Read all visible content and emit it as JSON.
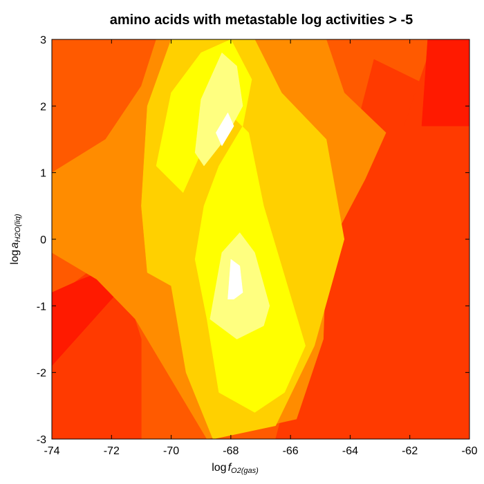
{
  "chart_data": {
    "type": "heatmap",
    "title": "amino acids with metastable log activities > -5",
    "xlabel": {
      "prefix": "log",
      "var": "f",
      "sub": "O2(gas)"
    },
    "ylabel": {
      "prefix": "log",
      "var": "a",
      "sub": "H2O(liq)"
    },
    "xlim": [
      -74,
      -60
    ],
    "ylim": [
      -3,
      3
    ],
    "x_ticks": [
      "-74",
      "-72",
      "-70",
      "-68",
      "-66",
      "-64",
      "-62",
      "-60"
    ],
    "x_tick_values": [
      -74,
      -72,
      -70,
      -68,
      -66,
      -64,
      -62,
      -60
    ],
    "y_ticks": [
      "-3",
      "-2",
      "-1",
      "0",
      "1",
      "2",
      "3"
    ],
    "y_tick_values": [
      -3,
      -2,
      -1,
      0,
      1,
      2,
      3
    ],
    "color_scale": [
      "#ff1a00",
      "#ff3a00",
      "#ff5a00",
      "#ff8c00",
      "#ffd000",
      "#ffff00",
      "#ffff80",
      "#ffffff"
    ],
    "count_levels": [
      1,
      2,
      3,
      4,
      5,
      6,
      7,
      8
    ],
    "regions": [
      {
        "level": 3,
        "points": [
          [
            -74,
            3
          ],
          [
            -60,
            3
          ],
          [
            -60,
            -3
          ],
          [
            -74,
            -3
          ]
        ]
      },
      {
        "level": 2,
        "points": [
          [
            -74,
            -0.9
          ],
          [
            -72.5,
            -0.4
          ],
          [
            -71.5,
            -0.8
          ],
          [
            -71,
            -1.5
          ],
          [
            -71,
            -3
          ],
          [
            -74,
            -3
          ]
        ]
      },
      {
        "level": 2,
        "points": [
          [
            -66.5,
            -3
          ],
          [
            -63.2,
            2.7
          ],
          [
            -60,
            2.0
          ],
          [
            -60,
            -3
          ]
        ]
      },
      {
        "level": 2,
        "points": [
          [
            -61.2,
            3
          ],
          [
            -60,
            3
          ],
          [
            -60,
            1.7
          ],
          [
            -62.2,
            1.7
          ]
        ]
      },
      {
        "level": 1,
        "points": [
          [
            -61.4,
            3
          ],
          [
            -60,
            3
          ],
          [
            -60,
            1.7
          ],
          [
            -61.6,
            1.7
          ]
        ]
      },
      {
        "level": 1,
        "points": [
          [
            -74,
            -1.9
          ],
          [
            -72.8,
            -1.3
          ],
          [
            -71.6,
            -0.7
          ],
          [
            -71.8,
            -0.4
          ],
          [
            -73,
            -0.6
          ],
          [
            -74,
            -0.8
          ]
        ]
      },
      {
        "level": 4,
        "points": [
          [
            -74,
            1.0
          ],
          [
            -72.2,
            1.5
          ],
          [
            -71,
            2.3
          ],
          [
            -70.5,
            3
          ],
          [
            -64.8,
            3
          ],
          [
            -64.2,
            2.2
          ],
          [
            -62.8,
            1.6
          ],
          [
            -63.5,
            0.9
          ],
          [
            -64.8,
            -0.2
          ],
          [
            -64.9,
            -1.5
          ],
          [
            -65.8,
            -2.7
          ],
          [
            -68.8,
            -3
          ],
          [
            -71.2,
            -1.2
          ],
          [
            -72.5,
            -0.6
          ],
          [
            -74,
            -0.2
          ]
        ]
      },
      {
        "level": 5,
        "points": [
          [
            -71,
            0.5
          ],
          [
            -70.8,
            2.0
          ],
          [
            -70,
            3
          ],
          [
            -67.2,
            3
          ],
          [
            -66.3,
            2.2
          ],
          [
            -64.8,
            1.5
          ],
          [
            -64.2,
            0
          ],
          [
            -65.2,
            -1.6
          ],
          [
            -66.5,
            -2.8
          ],
          [
            -68.6,
            -3
          ],
          [
            -69.5,
            -2.0
          ],
          [
            -70,
            -0.7
          ],
          [
            -70.8,
            -0.5
          ]
        ]
      },
      {
        "level": 6,
        "points": [
          [
            -70.5,
            1.1
          ],
          [
            -70,
            2.2
          ],
          [
            -69,
            2.8
          ],
          [
            -68,
            3
          ],
          [
            -67.3,
            2.4
          ],
          [
            -67.6,
            1.7
          ],
          [
            -68.4,
            1.1
          ],
          [
            -68.9,
            0.5
          ],
          [
            -69.2,
            -0.3
          ],
          [
            -68.8,
            -1.2
          ],
          [
            -68.4,
            -2.3
          ],
          [
            -67.2,
            -2.6
          ],
          [
            -66.2,
            -2.3
          ],
          [
            -65.5,
            -1.6
          ],
          [
            -66.3,
            -0.4
          ],
          [
            -66.9,
            0.5
          ],
          [
            -67.4,
            1.6
          ],
          [
            -68.3,
            2.0
          ],
          [
            -69.6,
            0.7
          ]
        ]
      },
      {
        "level": 7,
        "points": [
          [
            -69.2,
            1.3
          ],
          [
            -69.0,
            2.1
          ],
          [
            -68.3,
            2.8
          ],
          [
            -67.8,
            2.6
          ],
          [
            -67.6,
            2.0
          ],
          [
            -68.2,
            1.5
          ],
          [
            -68.9,
            1.1
          ]
        ]
      },
      {
        "level": 7,
        "points": [
          [
            -68.7,
            -1.2
          ],
          [
            -68.3,
            -0.2
          ],
          [
            -67.7,
            0.1
          ],
          [
            -67.2,
            -0.2
          ],
          [
            -66.7,
            -1.0
          ],
          [
            -66.9,
            -1.3
          ],
          [
            -67.8,
            -1.5
          ]
        ]
      },
      {
        "level": 8,
        "points": [
          [
            -68.5,
            1.6
          ],
          [
            -68.1,
            1.9
          ],
          [
            -67.9,
            1.7
          ],
          [
            -68.3,
            1.4
          ]
        ]
      },
      {
        "level": 8,
        "points": [
          [
            -68.1,
            -0.9
          ],
          [
            -68.0,
            -0.3
          ],
          [
            -67.7,
            -0.4
          ],
          [
            -67.6,
            -0.8
          ],
          [
            -67.9,
            -0.9
          ]
        ]
      }
    ]
  }
}
